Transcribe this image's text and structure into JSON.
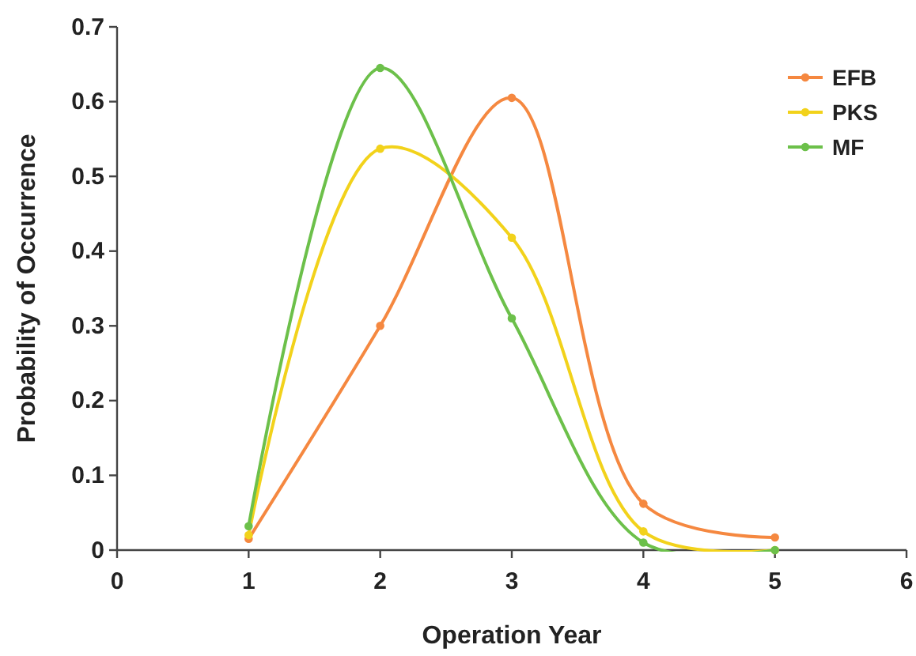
{
  "chart_data": {
    "type": "line",
    "xlabel": "Operation Year",
    "ylabel": "Probability of Occurrence",
    "x": [
      1,
      2,
      3,
      4,
      5
    ],
    "series": [
      {
        "name": "EFB",
        "color": "#f58840",
        "values": [
          0.015,
          0.3,
          0.605,
          0.062,
          0.017
        ]
      },
      {
        "name": "PKS",
        "color": "#f2d21b",
        "values": [
          0.02,
          0.537,
          0.418,
          0.025,
          0.0
        ]
      },
      {
        "name": "MF",
        "color": "#6cc04a",
        "values": [
          0.032,
          0.645,
          0.31,
          0.01,
          0.0
        ]
      }
    ],
    "xlim": [
      0,
      6
    ],
    "xticks": [
      0,
      1,
      2,
      3,
      4,
      5,
      6
    ],
    "ylim": [
      0,
      0.7
    ],
    "yticks": [
      0,
      0.1,
      0.2,
      0.3,
      0.4,
      0.5,
      0.6,
      0.7
    ],
    "legend": "top right",
    "marker": "circle",
    "grid": false
  }
}
